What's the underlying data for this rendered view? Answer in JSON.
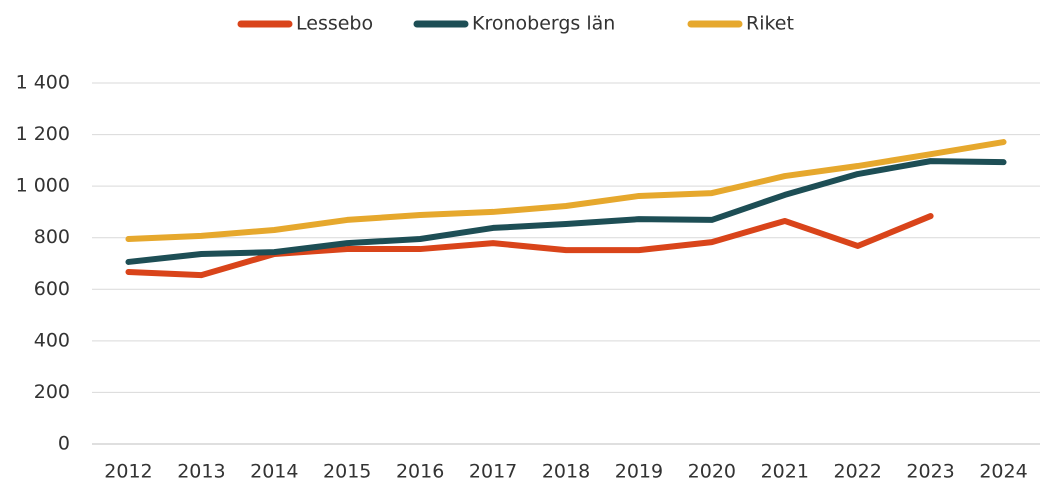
{
  "chart_data": {
    "type": "line",
    "categories": [
      "2012",
      "2013",
      "2014",
      "2015",
      "2016",
      "2017",
      "2018",
      "2019",
      "2020",
      "2021",
      "2022",
      "2023",
      "2024"
    ],
    "series": [
      {
        "name": "Lessebo",
        "color": "#d9441a",
        "values": [
          667,
          655,
          737,
          756,
          756,
          779,
          752,
          752,
          783,
          865,
          768,
          884,
          null
        ]
      },
      {
        "name": "Kronobergs län",
        "color": "#1d4e55",
        "values": [
          706,
          737,
          744,
          779,
          795,
          838,
          853,
          872,
          869,
          966,
          1047,
          1097,
          1093
        ]
      },
      {
        "name": "Riket",
        "color": "#e6a82d",
        "values": [
          795,
          807,
          830,
          869,
          888,
          900,
          923,
          962,
          973,
          1039,
          1078,
          1124,
          1171
        ]
      }
    ],
    "ylim": [
      0,
      1400
    ],
    "yticks": [
      0,
      200,
      400,
      600,
      800,
      {
        "value": 1000,
        "label": "1 000"
      },
      {
        "value": 1200,
        "label": "1 200"
      },
      {
        "value": 1400,
        "label": "1 400"
      }
    ],
    "grid": true,
    "legend": "top"
  }
}
